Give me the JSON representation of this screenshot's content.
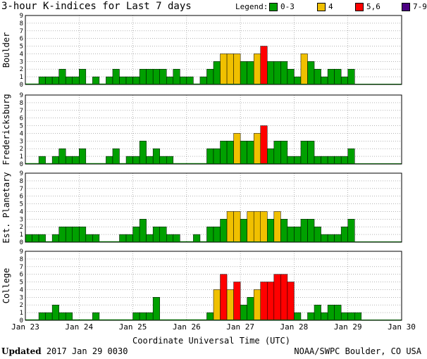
{
  "title": "3-hour K-indices for Last 7 days",
  "legend": {
    "label": "Legend:",
    "items": [
      {
        "text": "0-3",
        "color": "#00a000"
      },
      {
        "text": "4",
        "color": "#f0c000"
      },
      {
        "text": "5,6",
        "color": "#ff0000"
      },
      {
        "text": "7-9",
        "color": "#4b0082"
      }
    ]
  },
  "xlabel": "Coordinate Universal Time (UTC)",
  "footer": {
    "updated_label": "Updated",
    "updated_value": "2017 Jan 29 0030",
    "credit": "NOAA/SWPC Boulder, CO USA"
  },
  "chart_data": {
    "type": "bar",
    "x_tick_labels": [
      "Jan 23",
      "Jan 24",
      "Jan 25",
      "Jan 26",
      "Jan 27",
      "Jan 28",
      "Jan 29",
      "Jan 30"
    ],
    "y_ticks": [
      0,
      1,
      2,
      3,
      4,
      5,
      6,
      7,
      8,
      9
    ],
    "ylim": [
      0,
      9
    ],
    "bins_per_day": 8,
    "days": 7,
    "color_scale": {
      "0-3": "#00a000",
      "4": "#f0c000",
      "5,6": "#ff0000",
      "7-9": "#4b0082"
    },
    "panels": [
      {
        "name": "Boulder",
        "values": [
          0,
          0,
          1,
          1,
          1,
          2,
          1,
          1,
          2,
          0,
          1,
          0,
          1,
          2,
          1,
          1,
          1,
          2,
          2,
          2,
          2,
          1,
          2,
          1,
          1,
          0,
          1,
          2,
          3,
          4,
          4,
          4,
          3,
          3,
          4,
          5,
          3,
          3,
          3,
          2,
          1,
          4,
          3,
          2,
          1,
          2,
          2,
          1,
          2,
          null,
          null,
          null,
          null,
          null,
          null,
          null
        ]
      },
      {
        "name": "Fredericksburg",
        "values": [
          0,
          0,
          1,
          0,
          1,
          2,
          1,
          1,
          2,
          0,
          0,
          0,
          1,
          2,
          0,
          1,
          1,
          3,
          1,
          2,
          1,
          1,
          0,
          0,
          0,
          0,
          0,
          2,
          2,
          3,
          3,
          4,
          3,
          3,
          4,
          5,
          2,
          3,
          3,
          1,
          1,
          3,
          3,
          1,
          1,
          1,
          1,
          1,
          2,
          null,
          null,
          null,
          null,
          null,
          null,
          null
        ]
      },
      {
        "name": "Est. Planetary",
        "values": [
          1,
          1,
          1,
          0,
          1,
          2,
          2,
          2,
          2,
          1,
          1,
          0,
          0,
          0,
          1,
          1,
          2,
          3,
          1,
          2,
          2,
          1,
          1,
          0,
          0,
          1,
          0,
          2,
          2,
          3,
          4,
          4,
          3,
          4,
          4,
          4,
          3,
          4,
          3,
          2,
          2,
          3,
          3,
          2,
          1,
          1,
          1,
          2,
          3,
          null,
          null,
          null,
          null,
          null,
          null,
          null
        ]
      },
      {
        "name": "College",
        "values": [
          0,
          0,
          1,
          1,
          2,
          1,
          1,
          0,
          0,
          0,
          1,
          0,
          0,
          0,
          0,
          0,
          1,
          1,
          1,
          3,
          0,
          0,
          0,
          0,
          0,
          0,
          0,
          1,
          4,
          6,
          4,
          5,
          2,
          3,
          4,
          5,
          5,
          6,
          6,
          5,
          1,
          0,
          1,
          2,
          1,
          2,
          2,
          1,
          1,
          1,
          null,
          null,
          null,
          null,
          null,
          null
        ]
      }
    ]
  }
}
